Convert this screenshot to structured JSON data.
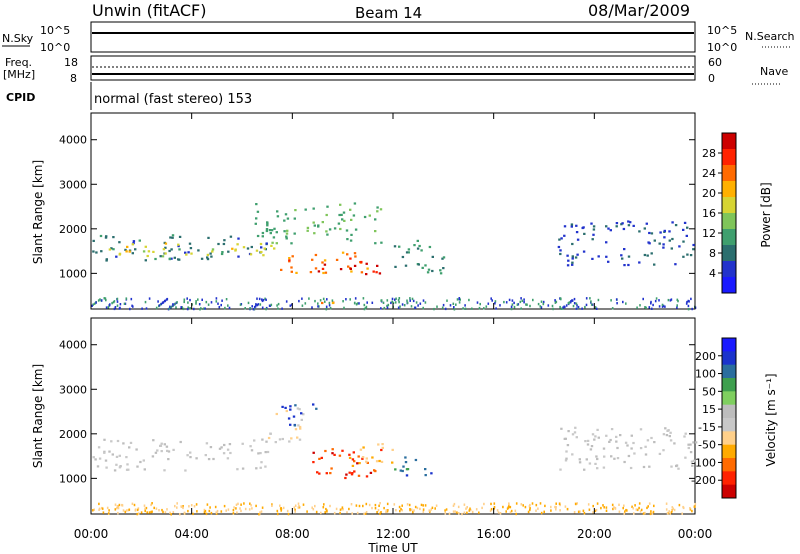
{
  "header": {
    "title": "Unwin (fitACF)",
    "beam": "Beam 14",
    "date": "08/Mar/2009"
  },
  "status_panels": {
    "nsky_label": "N.Sky",
    "nsearch_label": "N.Search",
    "exp_ticks": [
      "10^5",
      "10^0"
    ],
    "freq_label": "Freq.",
    "freq_unit": "[MHz]",
    "freq_ticks": [
      "18",
      "8"
    ],
    "nave_label": "Nave",
    "nave_ticks": [
      "60",
      "0"
    ],
    "cpid_label": "CPID",
    "cpid_text": "normal (fast stereo) 153"
  },
  "colors": {
    "power": [
      "#1a1aff",
      "#2233cc",
      "#2b6e6e",
      "#3f9f6e",
      "#7fc55a",
      "#d6d433",
      "#ffb000",
      "#ff6a00",
      "#ff2200",
      "#cc0000"
    ],
    "velocity": [
      "#cc0000",
      "#ff2200",
      "#ff6a00",
      "#ffaa00",
      "#ffd08a",
      "#c8c8c8",
      "#bdbdbd",
      "#7fcf5f",
      "#3e9f4e",
      "#2a6e9e",
      "#1a33cc",
      "#1a1aff"
    ]
  },
  "chart_data": [
    {
      "type": "heatmap",
      "name": "Power",
      "ylabel": "Slant Range [km]",
      "xlabel": "Time UT",
      "ylim": [
        200,
        4600
      ],
      "y_ticks": [
        "4000",
        "3000",
        "2000",
        "1000"
      ],
      "colorbar_label": "Power [dB]",
      "colorbar_ticks": [
        "28",
        "24",
        "20",
        "16",
        "12",
        "8",
        "4"
      ],
      "colorbar_range": [
        0,
        32
      ],
      "bands": [
        {
          "t0": 0.0,
          "t1": 7.0,
          "r0": 1300,
          "r1": 1900,
          "level": 8
        },
        {
          "t0": 0.5,
          "t1": 7.5,
          "r0": 1400,
          "r1": 1700,
          "level": 18
        },
        {
          "t0": 6.5,
          "t1": 11.5,
          "r0": 1700,
          "r1": 2600,
          "level": 12
        },
        {
          "t0": 7.5,
          "t1": 11.0,
          "r0": 1000,
          "r1": 1500,
          "level": 24
        },
        {
          "t0": 9.0,
          "t1": 11.5,
          "r0": 1000,
          "r1": 1300,
          "level": 30
        },
        {
          "t0": 9.0,
          "t1": 10.0,
          "r0": 300,
          "r1": 500,
          "level": 22
        },
        {
          "t0": 12.0,
          "t1": 14.0,
          "r0": 1000,
          "r1": 1800,
          "level": 10
        },
        {
          "t0": 18.5,
          "t1": 24.0,
          "r0": 1200,
          "r1": 2200,
          "level": 6
        }
      ]
    },
    {
      "type": "heatmap",
      "name": "Velocity",
      "ylabel": "Slant Range [km]",
      "xlabel": "Time UT",
      "ylim": [
        200,
        4600
      ],
      "y_ticks": [
        "4000",
        "3000",
        "2000",
        "1000"
      ],
      "x_ticks": [
        "00:00",
        "04:00",
        "08:00",
        "12:00",
        "16:00",
        "20:00",
        "00:00"
      ],
      "colorbar_label": "Velocity [m s⁻¹]",
      "colorbar_ticks": [
        "200",
        "100",
        "50",
        "15",
        "-15",
        "-50",
        "-100",
        "-200"
      ],
      "colorbar_range": [
        -250,
        250
      ],
      "bands": [
        {
          "t0": 0.0,
          "t1": 7.0,
          "r0": 1200,
          "r1": 1900,
          "level": 0
        },
        {
          "t0": 7.0,
          "t1": 8.5,
          "r0": 1800,
          "r1": 2600,
          "level": -40
        },
        {
          "t0": 7.5,
          "t1": 9.0,
          "r0": 2200,
          "r1": 2700,
          "level": 180
        },
        {
          "t0": 8.5,
          "t1": 11.5,
          "r0": 1000,
          "r1": 1700,
          "level": -180
        },
        {
          "t0": 10.0,
          "t1": 12.0,
          "r0": 1300,
          "r1": 1800,
          "level": -80
        },
        {
          "t0": 12.0,
          "t1": 13.5,
          "r0": 1000,
          "r1": 1500,
          "level": 150
        },
        {
          "t0": 18.5,
          "t1": 24.0,
          "r0": 1200,
          "r1": 2200,
          "level": 0
        }
      ]
    }
  ]
}
